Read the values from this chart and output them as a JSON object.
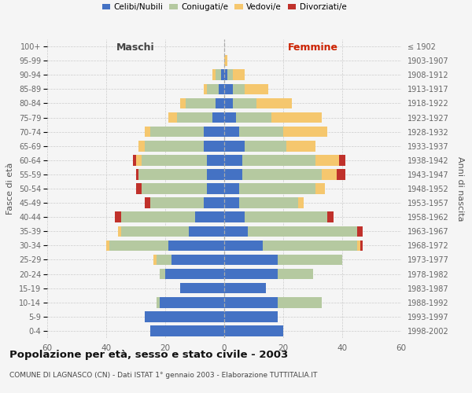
{
  "age_groups": [
    "0-4",
    "5-9",
    "10-14",
    "15-19",
    "20-24",
    "25-29",
    "30-34",
    "35-39",
    "40-44",
    "45-49",
    "50-54",
    "55-59",
    "60-64",
    "65-69",
    "70-74",
    "75-79",
    "80-84",
    "85-89",
    "90-94",
    "95-99",
    "100+"
  ],
  "birth_years": [
    "1998-2002",
    "1993-1997",
    "1988-1992",
    "1983-1987",
    "1978-1982",
    "1973-1977",
    "1968-1972",
    "1963-1967",
    "1958-1962",
    "1953-1957",
    "1948-1952",
    "1943-1947",
    "1938-1942",
    "1933-1937",
    "1928-1932",
    "1923-1927",
    "1918-1922",
    "1913-1917",
    "1908-1912",
    "1903-1907",
    "≤ 1902"
  ],
  "maschi": {
    "celibe": [
      25,
      27,
      22,
      15,
      20,
      18,
      19,
      12,
      10,
      7,
      6,
      6,
      6,
      7,
      7,
      4,
      3,
      2,
      1,
      0,
      0
    ],
    "coniugato": [
      0,
      0,
      1,
      0,
      2,
      5,
      20,
      23,
      25,
      18,
      22,
      23,
      22,
      20,
      18,
      12,
      10,
      4,
      2,
      0,
      0
    ],
    "vedovo": [
      0,
      0,
      0,
      0,
      0,
      1,
      1,
      1,
      0,
      0,
      0,
      0,
      2,
      2,
      2,
      3,
      2,
      1,
      1,
      0,
      0
    ],
    "divorziato": [
      0,
      0,
      0,
      0,
      0,
      0,
      0,
      0,
      2,
      2,
      2,
      1,
      1,
      0,
      0,
      0,
      0,
      0,
      0,
      0,
      0
    ]
  },
  "femmine": {
    "nubile": [
      20,
      18,
      18,
      14,
      18,
      18,
      13,
      8,
      7,
      5,
      5,
      6,
      6,
      7,
      5,
      4,
      3,
      3,
      1,
      0,
      0
    ],
    "coniugata": [
      0,
      0,
      15,
      0,
      12,
      22,
      32,
      37,
      28,
      20,
      26,
      27,
      25,
      14,
      15,
      12,
      8,
      4,
      2,
      0,
      0
    ],
    "vedova": [
      0,
      0,
      0,
      0,
      0,
      0,
      1,
      0,
      0,
      2,
      3,
      5,
      8,
      10,
      15,
      17,
      12,
      8,
      4,
      1,
      0
    ],
    "divorziata": [
      0,
      0,
      0,
      0,
      0,
      0,
      1,
      2,
      2,
      0,
      0,
      3,
      2,
      0,
      0,
      0,
      0,
      0,
      0,
      0,
      0
    ]
  },
  "colors": {
    "celibe": "#4472c4",
    "coniugato": "#b5c9a0",
    "vedovo": "#f5c76e",
    "divorziato": "#c0312b"
  },
  "legend_labels": [
    "Celibi/Nubili",
    "Coniugati/e",
    "Vedovi/e",
    "Divorziati/e"
  ],
  "xlim": 60,
  "xticks": [
    -60,
    -40,
    -20,
    0,
    20,
    40,
    60
  ],
  "xtick_labels": [
    "60",
    "40",
    "20",
    "0",
    "20",
    "40",
    "60"
  ],
  "title": "Popolazione per età, sesso e stato civile - 2003",
  "subtitle": "COMUNE DI LAGNASCO (CN) - Dati ISTAT 1° gennaio 2003 - Elaborazione TUTTITALIA.IT",
  "xlabel_left": "Maschi",
  "xlabel_right": "Femmine",
  "ylabel_left": "Fasce di età",
  "ylabel_right": "Anni di nascita",
  "bg_color": "#f5f5f5",
  "bar_height": 0.75,
  "grid_color": "#cccccc",
  "center_line_color": "#aaaaaa",
  "tick_color": "#666666"
}
